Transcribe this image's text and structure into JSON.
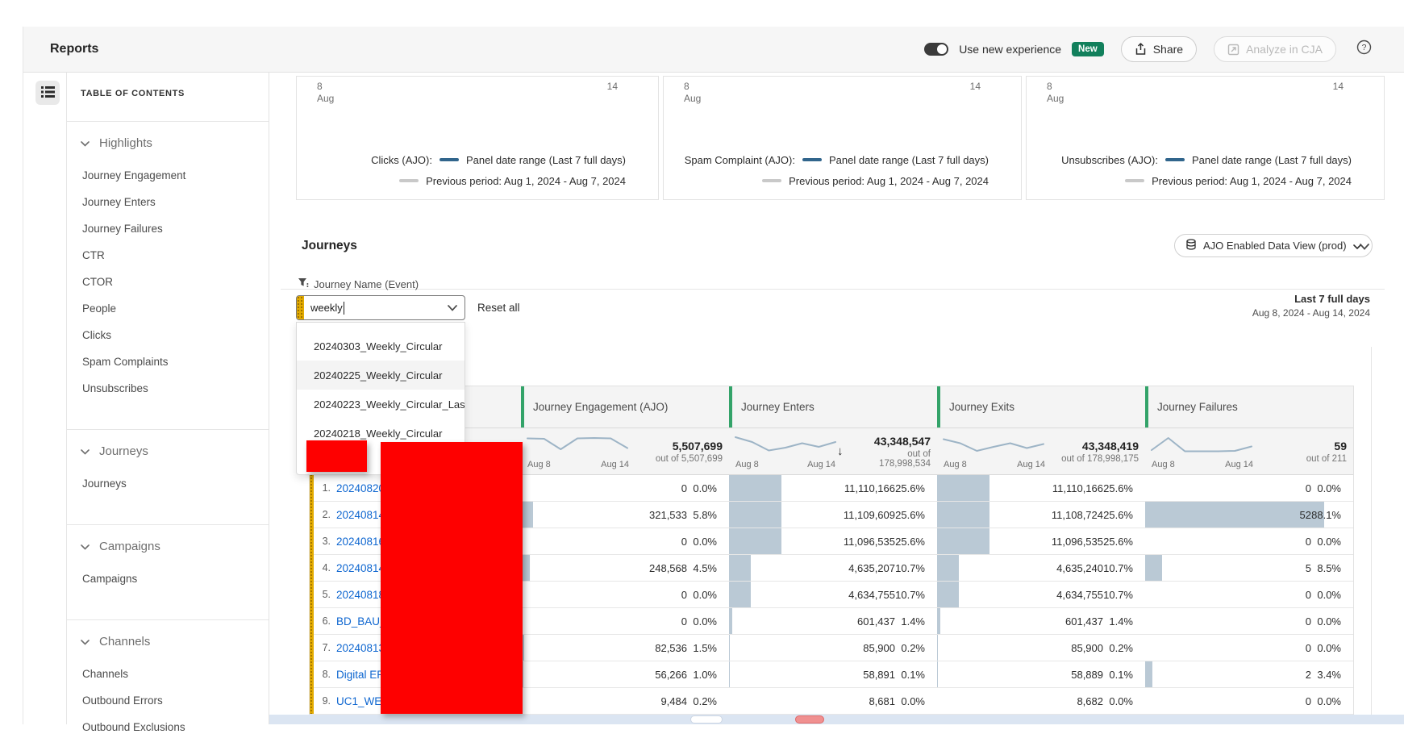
{
  "colors": {
    "accent_green_badge": "#12805c",
    "column_border_green": "#33a369",
    "link_blue": "#0e66d0",
    "gold_drag_handle": "#e3ab00",
    "data_bar_fill": "#bac9d5",
    "sparkline": "#9db4c6",
    "legend_current_line": "#31658c",
    "legend_previous_line": "#c9c9c9",
    "redaction_red": "#fe0000"
  },
  "topbar": {
    "title": "Reports",
    "toggle_label": "Use new experience",
    "badge": "New",
    "share_label": "Share",
    "analyze_label": "Analyze in CJA"
  },
  "sidebar": {
    "title": "TABLE OF CONTENTS",
    "sections": [
      {
        "label": "Highlights",
        "items": [
          "Journey Engagement",
          "Journey Enters",
          "Journey Failures",
          "CTR",
          "CTOR",
          "People",
          "Clicks",
          "Spam Complaints",
          "Unsubscribes"
        ]
      },
      {
        "label": "Journeys",
        "items": [
          "Journeys"
        ]
      },
      {
        "label": "Campaigns",
        "items": [
          "Campaigns"
        ]
      },
      {
        "label": "Channels",
        "items": [
          "Channels",
          "Outbound Errors",
          "Outbound Exclusions"
        ]
      }
    ]
  },
  "cards": [
    {
      "metric": "Clicks (AJO):",
      "tick_start_day": "8",
      "tick_start_month": "Aug",
      "tick_end_day": "14",
      "legend_current": "Panel date range (Last 7 full days)",
      "legend_previous": "Previous period: Aug 1, 2024 - Aug 7, 2024"
    },
    {
      "metric": "Spam Complaint (AJO):",
      "tick_start_day": "8",
      "tick_start_month": "Aug",
      "tick_end_day": "14",
      "legend_current": "Panel date range (Last 7 full days)",
      "legend_previous": "Previous period: Aug 1, 2024 - Aug 7, 2024"
    },
    {
      "metric": "Unsubscribes (AJO):",
      "tick_start_day": "8",
      "tick_start_month": "Aug",
      "tick_end_day": "14",
      "legend_current": "Panel date range (Last 7 full days)",
      "legend_previous": "Previous period: Aug 1, 2024 - Aug 7, 2024"
    }
  ],
  "journeys": {
    "heading": "Journeys",
    "data_view_label": "AJO Enabled Data View (prod)",
    "filter_label": "Journey Name (Event)",
    "filter_value": "weekly",
    "reset_label": "Reset all",
    "range_title": "Last 7 full days",
    "range_dates": "Aug 8, 2024 - Aug 14, 2024",
    "dropdown_options": [
      "20240303_Weekly_Circular",
      "20240225_Weekly_Circular",
      "20240223_Weekly_Circular_Las",
      "20240218_Weekly_Circular"
    ]
  },
  "table": {
    "spark_start": "Aug 8",
    "spark_end": "Aug 14",
    "sort_arrow_glyph": "↓",
    "columns": [
      {
        "label": "Journey Engagement (AJO)",
        "total": "5,507,699",
        "out_of": "out of 5,507,699",
        "sorted": false,
        "spark": [
          4.3,
          4.2,
          1.6,
          4.3,
          4.4,
          4.3,
          1.9
        ]
      },
      {
        "label": "Journey Enters",
        "total": "43,348,547",
        "out_of": "out of 178,998,534",
        "sorted": true,
        "spark": [
          4.6,
          3.4,
          1.3,
          2.0,
          3.1,
          2.2,
          3.4
        ]
      },
      {
        "label": "Journey Exits",
        "total": "43,348,419",
        "out_of": "out of 178,998,175",
        "sorted": false,
        "spark": [
          4.1,
          3.1,
          1.2,
          2.2,
          3.1,
          1.9,
          2.9
        ]
      },
      {
        "label": "Journey Failures",
        "total": "59",
        "out_of": "out of 211",
        "sorted": false,
        "spark": [
          1.4,
          4.4,
          1.1,
          1.1,
          1.1,
          1.2,
          2.3
        ]
      }
    ],
    "rows": [
      {
        "num": "1.",
        "name": "20240820_",
        "cells": [
          [
            "0",
            "0.0%"
          ],
          [
            "11,110,166",
            "25.6%"
          ],
          [
            "11,110,166",
            "25.6%"
          ],
          [
            "0",
            "0.0%"
          ]
        ]
      },
      {
        "num": "2.",
        "name": "20240814_",
        "cells": [
          [
            "321,533",
            "5.8%"
          ],
          [
            "11,109,609",
            "25.6%"
          ],
          [
            "11,108,724",
            "25.6%"
          ],
          [
            "52",
            "88.1%"
          ]
        ]
      },
      {
        "num": "3.",
        "name": "20240816_",
        "cells": [
          [
            "0",
            "0.0%"
          ],
          [
            "11,096,535",
            "25.6%"
          ],
          [
            "11,096,535",
            "25.6%"
          ],
          [
            "0",
            "0.0%"
          ]
        ]
      },
      {
        "num": "4.",
        "name": "20240814_",
        "cells": [
          [
            "248,568",
            "4.5%"
          ],
          [
            "4,635,207",
            "10.7%"
          ],
          [
            "4,635,240",
            "10.7%"
          ],
          [
            "5",
            "8.5%"
          ]
        ]
      },
      {
        "num": "5.",
        "name": "20240818_",
        "cells": [
          [
            "0",
            "0.0%"
          ],
          [
            "4,634,755",
            "10.7%"
          ],
          [
            "4,634,755",
            "10.7%"
          ],
          [
            "0",
            "0.0%"
          ]
        ]
      },
      {
        "num": "6.",
        "name": "BD_BAU_C",
        "cells": [
          [
            "0",
            "0.0%"
          ],
          [
            "601,437",
            "1.4%"
          ],
          [
            "601,437",
            "1.4%"
          ],
          [
            "0",
            "0.0%"
          ]
        ]
      },
      {
        "num": "7.",
        "name": "20240813_",
        "cells": [
          [
            "82,536",
            "1.5%"
          ],
          [
            "85,900",
            "0.2%"
          ],
          [
            "85,900",
            "0.2%"
          ],
          [
            "0",
            "0.0%"
          ]
        ]
      },
      {
        "num": "8.",
        "name": "Digital ERe",
        "cells": [
          [
            "56,266",
            "1.0%"
          ],
          [
            "58,891",
            "0.1%"
          ],
          [
            "58,889",
            "0.1%"
          ],
          [
            "2",
            "3.4%"
          ]
        ]
      },
      {
        "num": "9.",
        "name": "UC1_WE1_",
        "cells": [
          [
            "9,484",
            "0.2%"
          ],
          [
            "8,681",
            "0.0%"
          ],
          [
            "8,682",
            "0.0%"
          ],
          [
            "0",
            "0.0%"
          ]
        ]
      }
    ]
  }
}
